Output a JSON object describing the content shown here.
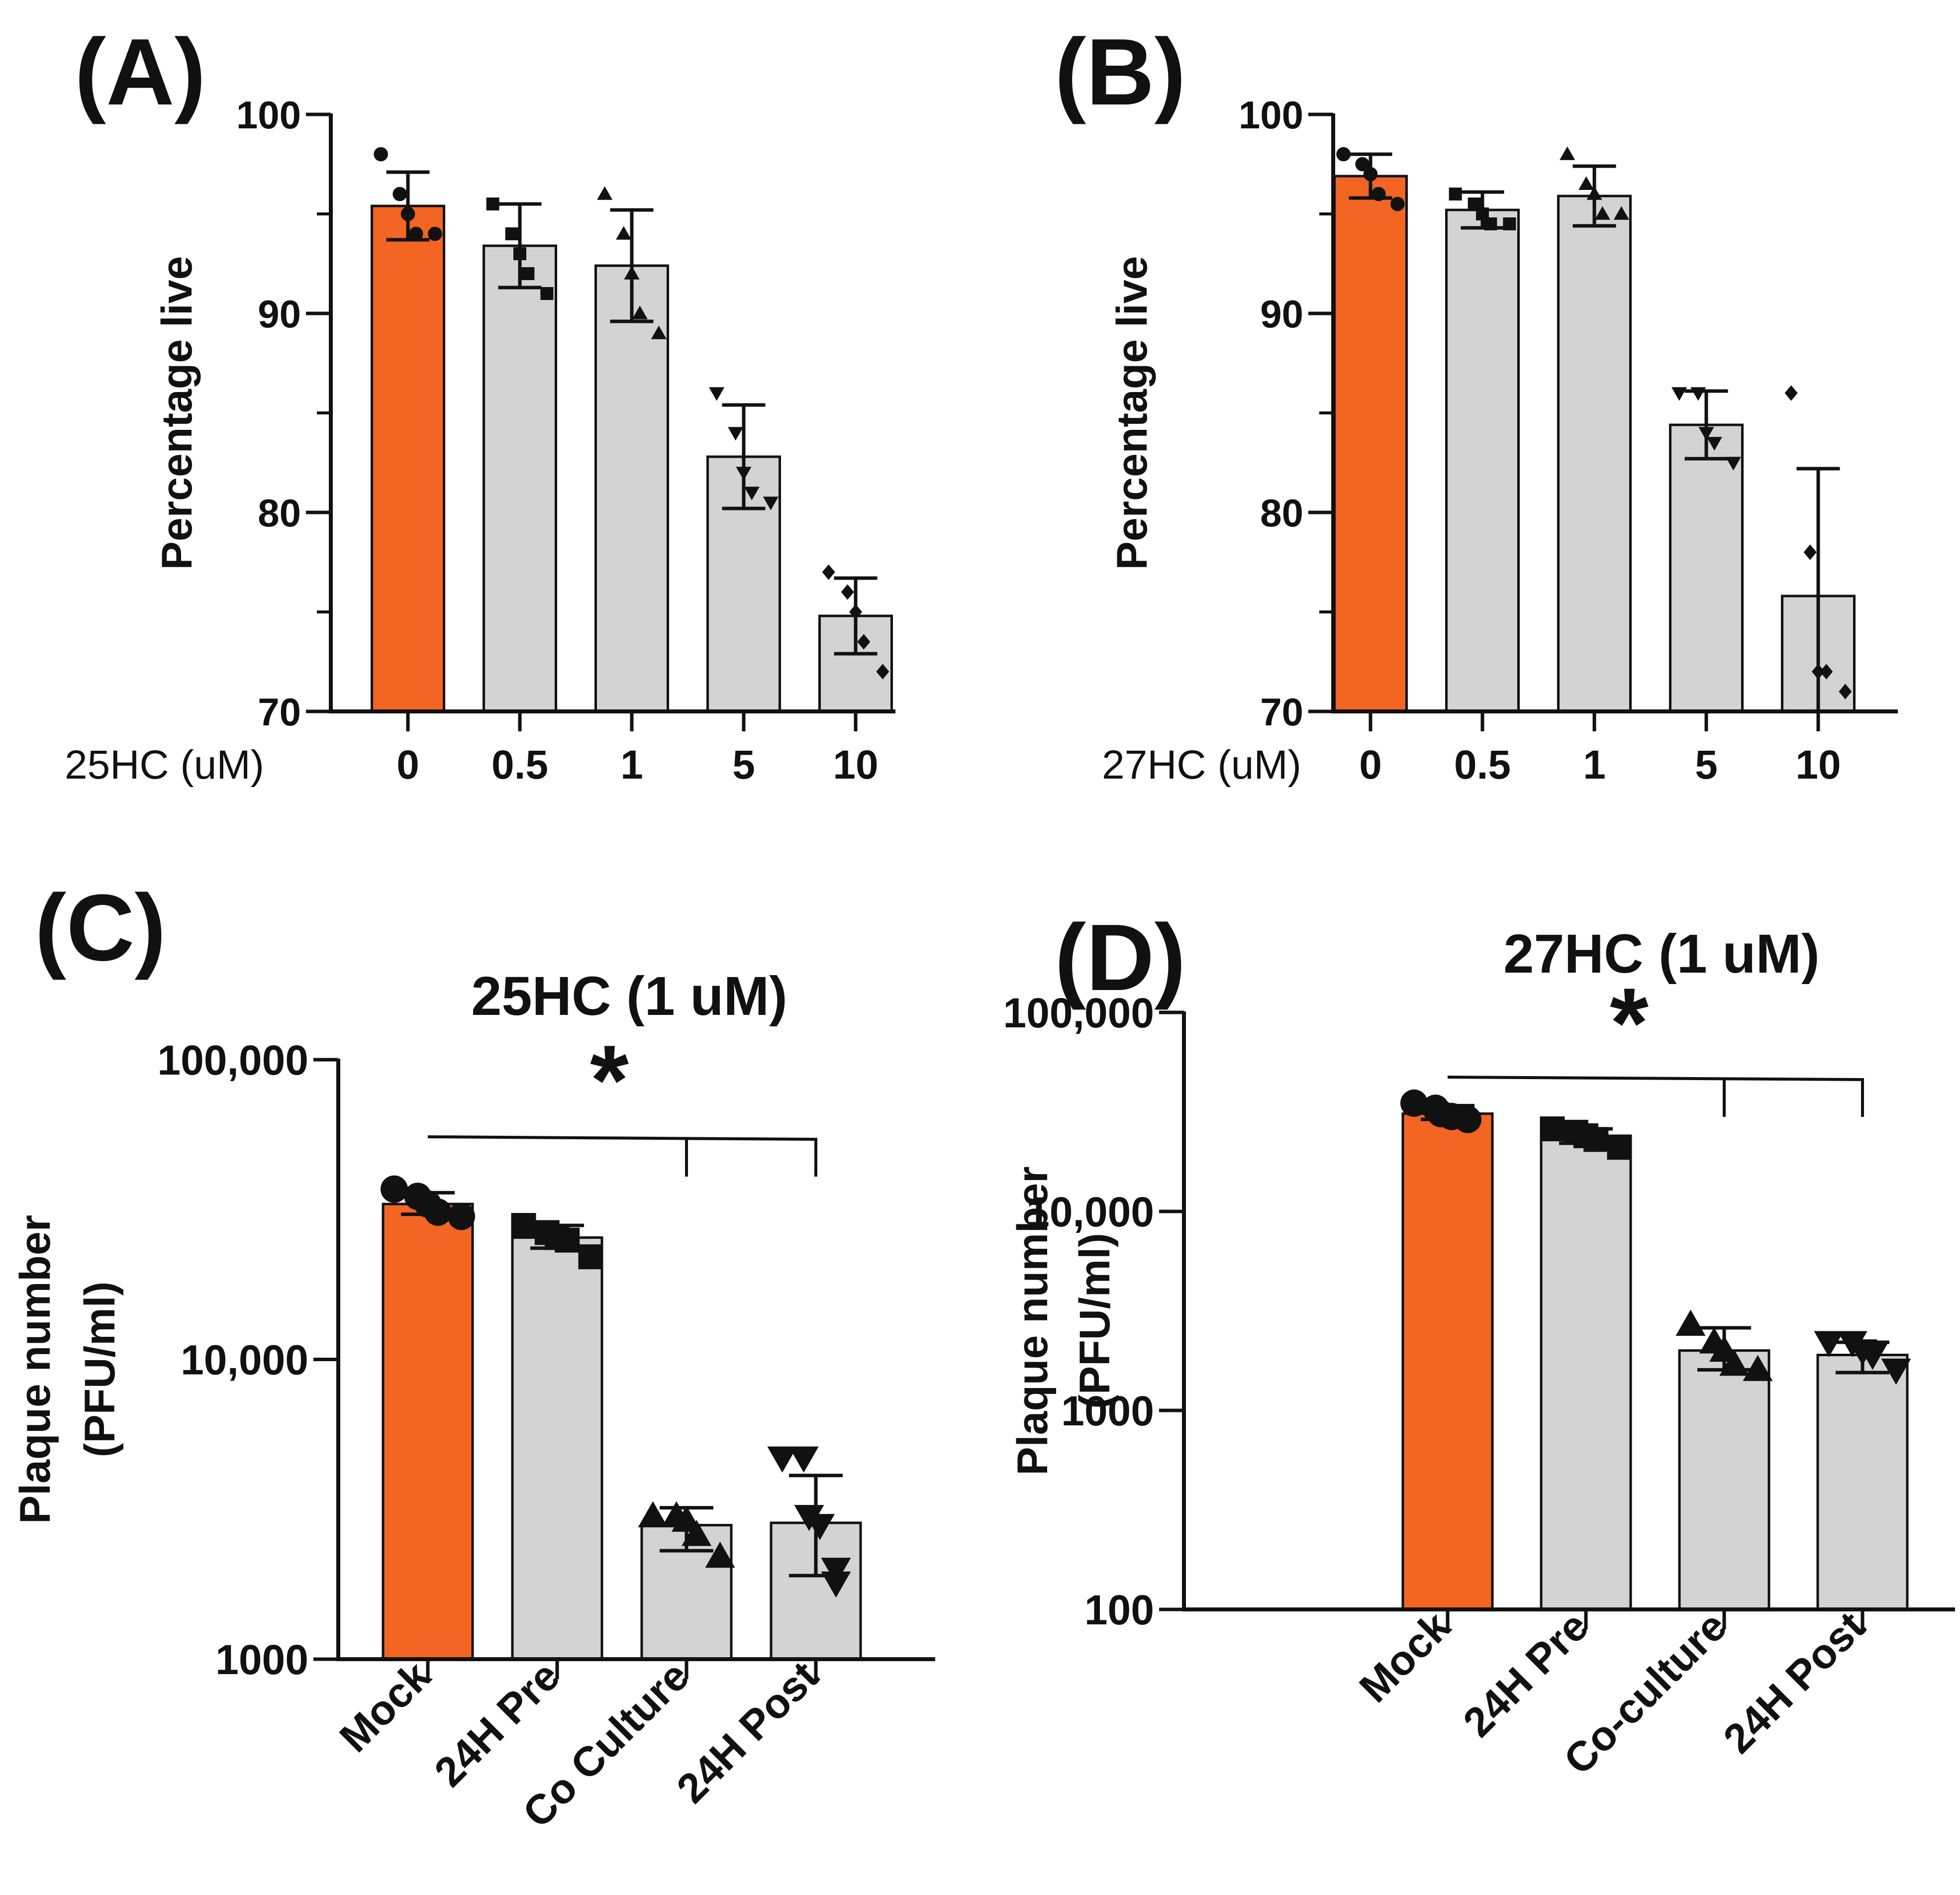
{
  "colors": {
    "control_bar": "#F26522",
    "treatment_bar": "#D3D3D3",
    "outline": "#111111"
  },
  "chart_data": [
    {
      "panel": "(A)",
      "type": "bar",
      "scale": "linear",
      "xlabel": "25HC (uM)",
      "ylabel": "Percentage live",
      "ylim": [
        70,
        100
      ],
      "yticks": [
        "70",
        "80",
        "90",
        "100"
      ],
      "ytick_values": [
        70,
        80,
        90,
        100
      ],
      "categories": [
        "0",
        "0.5",
        "1",
        "5",
        "10"
      ],
      "values": [
        95.4,
        93.4,
        92.4,
        82.8,
        74.8
      ],
      "errors": [
        1.7,
        2.1,
        2.8,
        2.6,
        1.9
      ],
      "markers": [
        "circle",
        "square",
        "triangle-up",
        "triangle-down",
        "diamond"
      ],
      "points": [
        [
          98,
          96,
          95,
          94,
          94
        ],
        [
          95.5,
          94,
          93,
          92,
          91
        ],
        [
          96,
          94,
          92,
          90,
          89
        ],
        [
          86,
          84,
          82,
          81,
          80.5
        ],
        [
          77,
          76,
          75,
          73.5,
          72
        ]
      ],
      "control_index": 0
    },
    {
      "panel": "(B)",
      "type": "bar",
      "scale": "linear",
      "xlabel": "27HC (uM)",
      "ylabel": "Percentage live",
      "ylim": [
        70,
        100
      ],
      "yticks": [
        "70",
        "80",
        "90",
        "100"
      ],
      "ytick_values": [
        70,
        80,
        90,
        100
      ],
      "categories": [
        "0",
        "0.5",
        "1",
        "5",
        "10"
      ],
      "values": [
        96.9,
        95.2,
        95.9,
        84.4,
        75.8
      ],
      "errors": [
        1.1,
        0.9,
        1.5,
        1.7,
        6.4
      ],
      "markers": [
        "circle",
        "square",
        "triangle-up",
        "triangle-down",
        "diamond"
      ],
      "points": [
        [
          98,
          97.5,
          97,
          96,
          95.5
        ],
        [
          96,
          95.5,
          95,
          94.5,
          94.5
        ],
        [
          98,
          96.5,
          96,
          95,
          95
        ],
        [
          86,
          86,
          84,
          83.5,
          82.5
        ],
        [
          86,
          78,
          72,
          72,
          71
        ]
      ],
      "control_index": 0
    },
    {
      "panel": "(C)",
      "type": "bar",
      "scale": "log",
      "title": "25HC (1 uM)",
      "ylabel": "Plaque number (PFU/ml)",
      "ylabel_lines": [
        "Plaque number",
        "(PFU/ml)"
      ],
      "ylim": [
        1000,
        100000
      ],
      "yticks": [
        "1000",
        "10,000",
        "100,000"
      ],
      "ytick_values": [
        1000,
        10000,
        100000
      ],
      "categories": [
        "Mock",
        "24H Pre",
        "Co Culture",
        "24H Post"
      ],
      "values": [
        33000,
        25500,
        2800,
        2850
      ],
      "err_low": [
        30500,
        23500,
        2300,
        1900
      ],
      "err_high": [
        36000,
        28000,
        3200,
        4100
      ],
      "markers": [
        "circle",
        "square",
        "triangle-up",
        "triangle-down"
      ],
      "points": [
        [
          37000,
          35000,
          33000,
          31000,
          30000
        ],
        [
          28000,
          26500,
          25500,
          25000,
          22000
        ],
        [
          3000,
          3000,
          2900,
          2600,
          2200
        ],
        [
          4700,
          4700,
          3000,
          2800,
          2000,
          1800
        ]
      ],
      "significance": "*",
      "sig_from": 0,
      "sig_to": [
        2,
        3
      ],
      "control_index": 0
    },
    {
      "panel": "(D)",
      "type": "bar",
      "scale": "log",
      "title": "27HC (1 uM)",
      "ylabel": "Plaque number (PFU/ml)",
      "ylabel_lines": [
        "Plaque number",
        "(PFU/ml)"
      ],
      "ylim": [
        100,
        100000
      ],
      "yticks": [
        "100",
        "1000",
        "10,000",
        "100,000"
      ],
      "ytick_values": [
        100,
        1000,
        10000,
        100000
      ],
      "categories": [
        "Mock",
        "24H Pre",
        "Co-culture",
        "24H Post"
      ],
      "values": [
        31000,
        24000,
        2000,
        1900
      ],
      "err_low": [
        29000,
        22000,
        1600,
        1550
      ],
      "err_high": [
        34000,
        26000,
        2600,
        2200
      ],
      "markers": [
        "circle",
        "square",
        "triangle-up",
        "triangle-down"
      ],
      "points": [
        [
          35000,
          33000,
          31000,
          30000,
          29000,
          29000
        ],
        [
          26000,
          25000,
          24000,
          23000,
          21000
        ],
        [
          2700,
          2200,
          2000,
          1700,
          1600
        ],
        [
          2200,
          2200,
          2000,
          1900,
          1600
        ]
      ],
      "significance": "*",
      "sig_from": 0,
      "sig_to": [
        2,
        3
      ],
      "control_index": 0
    }
  ]
}
